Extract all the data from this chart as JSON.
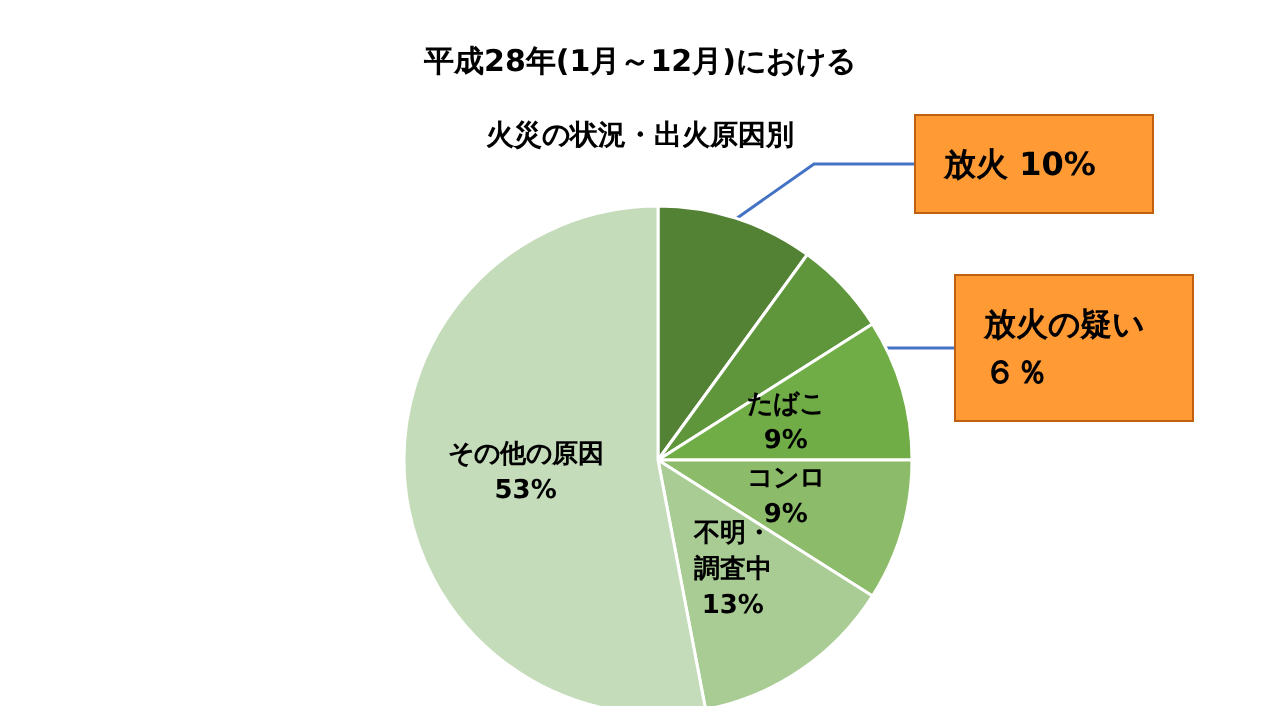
{
  "chart_data": {
    "type": "pie",
    "title": "平成28年(1月～12月)における",
    "subtitle": "火災の状況・出火原因別",
    "categories": [
      "放火",
      "放火の疑い",
      "たばこ",
      "コンロ",
      "不明・調査中",
      "その他の原因"
    ],
    "values": [
      10,
      6,
      9,
      9,
      13,
      53
    ],
    "colors": [
      "#548235",
      "#5f963b",
      "#70ad47",
      "#8cbb69",
      "#a9cc94",
      "#c5dcba"
    ],
    "value_labels": [
      "10%",
      "６％",
      "9%",
      "9%",
      "13%",
      "53%"
    ],
    "legend": false
  }
}
